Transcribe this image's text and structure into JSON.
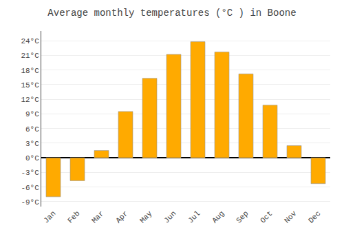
{
  "chart_data": {
    "type": "bar",
    "title": "Average monthly temperatures (°C ) in Boone",
    "categories": [
      "Jan",
      "Feb",
      "Mar",
      "Apr",
      "May",
      "Jun",
      "Jul",
      "Aug",
      "Sep",
      "Oct",
      "Nov",
      "Dec"
    ],
    "values": [
      -8,
      -4.7,
      1.5,
      9.5,
      16.3,
      21.2,
      23.8,
      21.7,
      17.2,
      10.8,
      2.5,
      -5.3
    ],
    "color": "#FFAA00",
    "ylim": [
      -10,
      26
    ],
    "yticks": [
      {
        "value": -9,
        "label": "-9°C"
      },
      {
        "value": -6,
        "label": "-6°C"
      },
      {
        "value": -3,
        "label": "-3°C"
      },
      {
        "value": 0,
        "label": "0°C"
      },
      {
        "value": 3,
        "label": "3°C"
      },
      {
        "value": 6,
        "label": "6°C"
      },
      {
        "value": 9,
        "label": "9°C"
      },
      {
        "value": 12,
        "label": "12°C"
      },
      {
        "value": 15,
        "label": "15°C"
      },
      {
        "value": 18,
        "label": "18°C"
      },
      {
        "value": 21,
        "label": "21°C"
      },
      {
        "value": 24,
        "label": "24°C"
      }
    ],
    "grid": true
  }
}
